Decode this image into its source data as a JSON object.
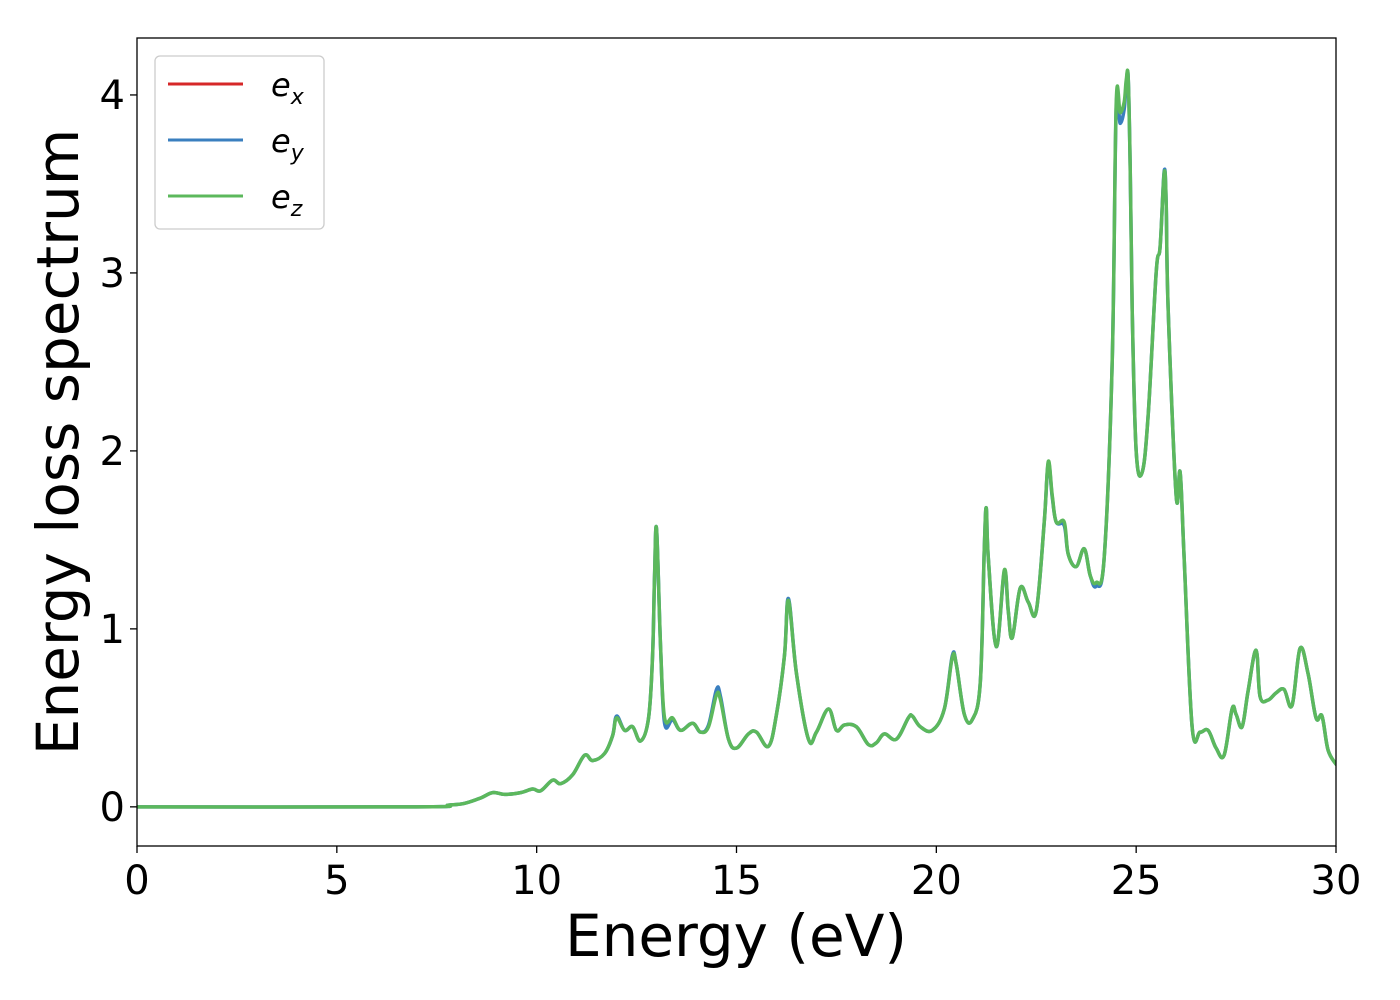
{
  "chart_data": {
    "type": "line",
    "xlabel": "Energy (eV)",
    "ylabel": "Energy loss spectrum",
    "xlim": [
      0,
      30
    ],
    "ylim": [
      -0.22,
      4.32
    ],
    "xticks": [
      0,
      5,
      10,
      15,
      20,
      25,
      30
    ],
    "yticks": [
      0,
      1,
      2,
      3,
      4
    ],
    "grid": false,
    "legend_position": "top-left",
    "colors": {
      "e_x": "#d62728",
      "e_y": "#3a7fbf",
      "e_z": "#5cb85c"
    },
    "series": [
      {
        "key": "x",
        "name_base": "e",
        "name_sub": "x",
        "color": "#d62728",
        "width": 2.5
      },
      {
        "key": "y",
        "name_base": "e",
        "name_sub": "y",
        "color": "#3a7fbf",
        "width": 3.5
      },
      {
        "key": "z",
        "name_base": "e",
        "name_sub": "z",
        "color": "#5cb85c",
        "width": 3.5
      }
    ],
    "x": [
      0,
      7.0,
      7.8,
      8.2,
      8.6,
      8.9,
      9.2,
      9.6,
      9.9,
      10.1,
      10.4,
      10.6,
      10.9,
      11.2,
      11.4,
      11.7,
      11.9,
      12.0,
      12.2,
      12.4,
      12.6,
      12.8,
      12.9,
      12.95,
      13.0,
      13.1,
      13.2,
      13.4,
      13.6,
      13.9,
      14.1,
      14.3,
      14.5,
      14.6,
      14.8,
      15.0,
      15.3,
      15.5,
      15.8,
      16.0,
      16.2,
      16.3,
      16.5,
      16.8,
      17.0,
      17.3,
      17.5,
      17.7,
      18.0,
      18.3,
      18.5,
      18.7,
      19.0,
      19.3,
      19.4,
      19.6,
      19.9,
      20.2,
      20.4,
      20.5,
      20.7,
      20.9,
      21.1,
      21.2,
      21.25,
      21.3,
      21.5,
      21.7,
      21.8,
      21.9,
      22.1,
      22.3,
      22.5,
      22.7,
      22.8,
      22.9,
      23.0,
      23.2,
      23.3,
      23.5,
      23.7,
      23.85,
      24.0,
      24.2,
      24.4,
      24.5,
      24.6,
      24.7,
      24.75,
      24.8,
      24.85,
      24.9,
      25.0,
      25.15,
      25.3,
      25.5,
      25.6,
      25.7,
      25.75,
      25.8,
      26.0,
      26.1,
      26.2,
      26.4,
      26.6,
      26.8,
      27.0,
      27.2,
      27.4,
      27.5,
      27.65,
      27.8,
      28.0,
      28.1,
      28.3,
      28.5,
      28.7,
      28.9,
      29.1,
      29.3,
      29.5,
      29.65,
      29.8,
      30.0
    ],
    "ez": [
      0.0,
      0.0,
      0.01,
      0.02,
      0.05,
      0.08,
      0.07,
      0.08,
      0.1,
      0.09,
      0.15,
      0.13,
      0.18,
      0.29,
      0.26,
      0.3,
      0.4,
      0.5,
      0.43,
      0.45,
      0.37,
      0.5,
      0.85,
      1.3,
      1.56,
      0.9,
      0.5,
      0.5,
      0.43,
      0.47,
      0.42,
      0.45,
      0.63,
      0.6,
      0.38,
      0.33,
      0.41,
      0.42,
      0.34,
      0.52,
      0.85,
      1.16,
      0.75,
      0.38,
      0.42,
      0.55,
      0.43,
      0.46,
      0.45,
      0.35,
      0.36,
      0.41,
      0.38,
      0.5,
      0.51,
      0.45,
      0.43,
      0.55,
      0.84,
      0.8,
      0.52,
      0.49,
      0.7,
      1.45,
      1.68,
      1.4,
      0.9,
      1.33,
      1.1,
      0.95,
      1.23,
      1.15,
      1.1,
      1.6,
      1.94,
      1.75,
      1.6,
      1.6,
      1.42,
      1.35,
      1.45,
      1.3,
      1.26,
      1.4,
      2.5,
      3.95,
      3.9,
      3.96,
      4.08,
      4.1,
      3.6,
      2.8,
      2.0,
      1.88,
      2.2,
      3.0,
      3.15,
      3.56,
      3.4,
      2.8,
      1.75,
      1.88,
      1.4,
      0.45,
      0.42,
      0.43,
      0.33,
      0.29,
      0.55,
      0.52,
      0.45,
      0.65,
      0.88,
      0.62,
      0.6,
      0.64,
      0.66,
      0.57,
      0.89,
      0.75,
      0.5,
      0.51,
      0.32,
      0.24
    ],
    "ex_offsets": [
      0,
      0,
      0,
      0,
      0,
      0,
      0,
      0,
      0,
      0,
      0,
      0,
      0,
      0,
      0,
      0,
      0,
      0.01,
      0,
      0,
      0,
      0,
      0,
      0,
      0,
      0,
      -0.02,
      -0.01,
      0,
      0,
      0,
      0.01,
      0.02,
      0.01,
      0,
      0,
      0,
      0,
      0,
      0,
      0,
      0.01,
      0,
      0,
      0,
      0,
      0,
      0,
      0,
      0,
      0,
      0,
      0,
      0,
      0,
      0,
      0,
      0,
      0.01,
      0,
      0,
      0,
      0,
      0,
      0,
      0,
      0,
      -0.01,
      0,
      0,
      0,
      0,
      0,
      0,
      -0.01,
      -0.01,
      0,
      -0.02,
      0,
      0,
      0,
      0,
      -0.01,
      0,
      0,
      -0.02,
      -0.05,
      -0.03,
      -0.01,
      0,
      0,
      0,
      0,
      0,
      0,
      0,
      0,
      0.01,
      0,
      0,
      0,
      0,
      0,
      0,
      0,
      0,
      0,
      0,
      0,
      0,
      0,
      0,
      0,
      0,
      0,
      0,
      0,
      0,
      0,
      0,
      0,
      0,
      0,
      0
    ],
    "ey_offsets": [
      0,
      0,
      0,
      0,
      0,
      0,
      0,
      0,
      0,
      0,
      0,
      0,
      0,
      0,
      0,
      0,
      0,
      0.01,
      0,
      0,
      0,
      0,
      0,
      0,
      0,
      0,
      -0.03,
      -0.01,
      0,
      0,
      0,
      0.01,
      0.03,
      0.02,
      0,
      0,
      0,
      0,
      0,
      0,
      0,
      0.01,
      0,
      0,
      0,
      0,
      0,
      0,
      0,
      0,
      0,
      0,
      0,
      0,
      0,
      0,
      0,
      0,
      0.01,
      0,
      0,
      0,
      0,
      0,
      0,
      0,
      0,
      -0.01,
      0,
      0,
      0,
      0,
      0,
      0,
      -0.01,
      -0.01,
      0,
      -0.02,
      0,
      0,
      0,
      0,
      -0.02,
      0,
      0,
      -0.03,
      -0.06,
      -0.04,
      -0.02,
      0,
      0,
      0,
      0,
      0,
      0,
      0,
      0,
      0.01,
      0,
      0,
      0,
      0,
      0,
      0,
      0,
      0,
      0,
      0,
      0,
      0,
      0,
      0,
      0,
      0,
      0,
      0,
      0,
      0,
      0,
      0,
      0,
      0,
      0,
      0
    ]
  }
}
